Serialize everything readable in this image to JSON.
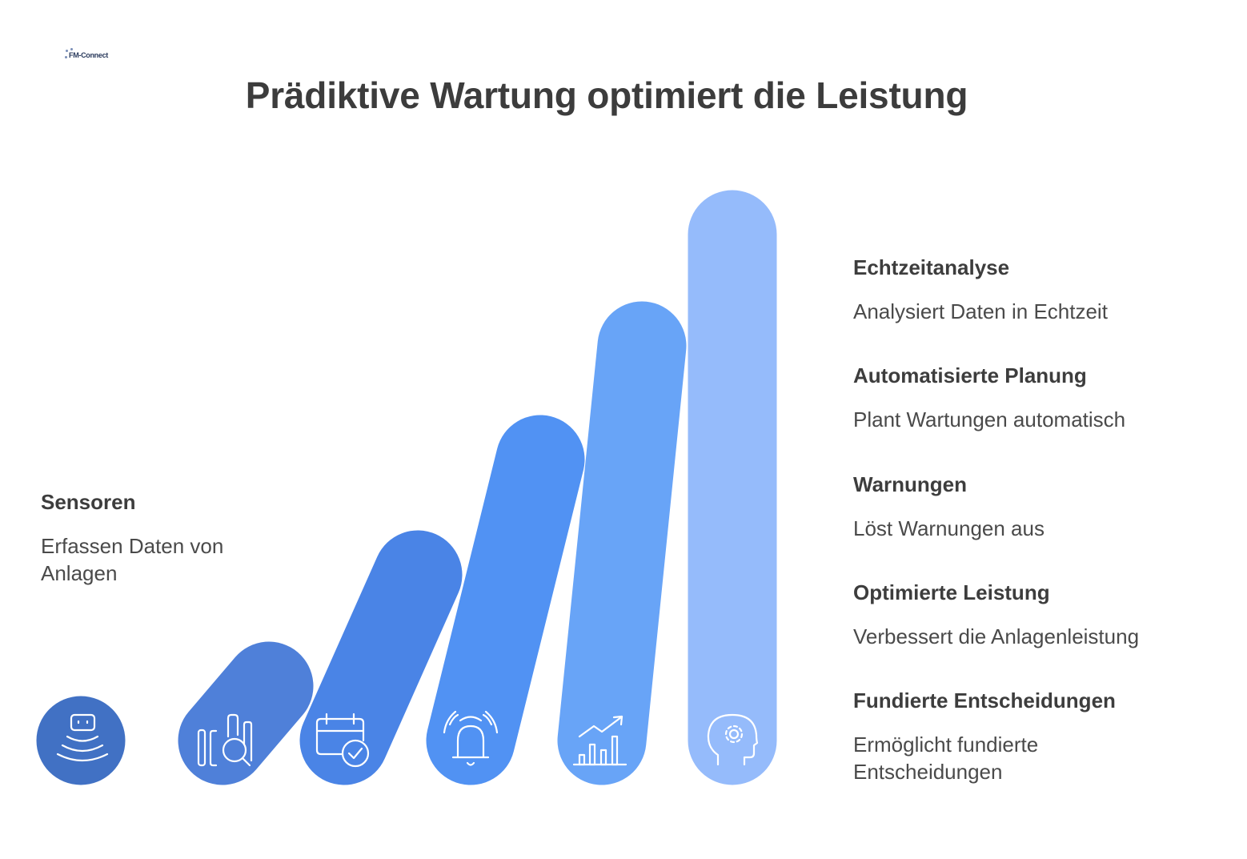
{
  "title": "Prädiktive Wartung optimiert die Leistung",
  "logo": {
    "text": "FM-Connect"
  },
  "colors": {
    "bar1": "#4171c4",
    "bar2": "#4f80d9",
    "bar3": "#4a84e6",
    "bar4": "#5192f3",
    "bar5": "#68a4f7",
    "bar6": "#95bbfb",
    "icon": "#ffffff",
    "text": "#3d3d3d"
  },
  "stages": [
    {
      "label": "Sensoren",
      "description": "Erfassen Daten von Anlagen",
      "icon": "sensor-icon"
    },
    {
      "label": "Echtzeitanalyse",
      "description": "Analysiert Daten in Echtzeit",
      "icon": "data-search-icon"
    },
    {
      "label": "Automatisierte Planung",
      "description": "Plant Wartungen automatisch",
      "icon": "calendar-check-icon"
    },
    {
      "label": "Warnungen",
      "description": "Löst Warnungen aus",
      "icon": "alarm-bell-icon"
    },
    {
      "label": "Optimierte Leistung",
      "description": "Verbessert die Anlagenleistung",
      "icon": "growth-chart-icon"
    },
    {
      "label": "Fundierte Entscheidungen",
      "description": "Ermöglicht fundierte Entscheidungen",
      "icon": "head-gear-icon"
    }
  ]
}
